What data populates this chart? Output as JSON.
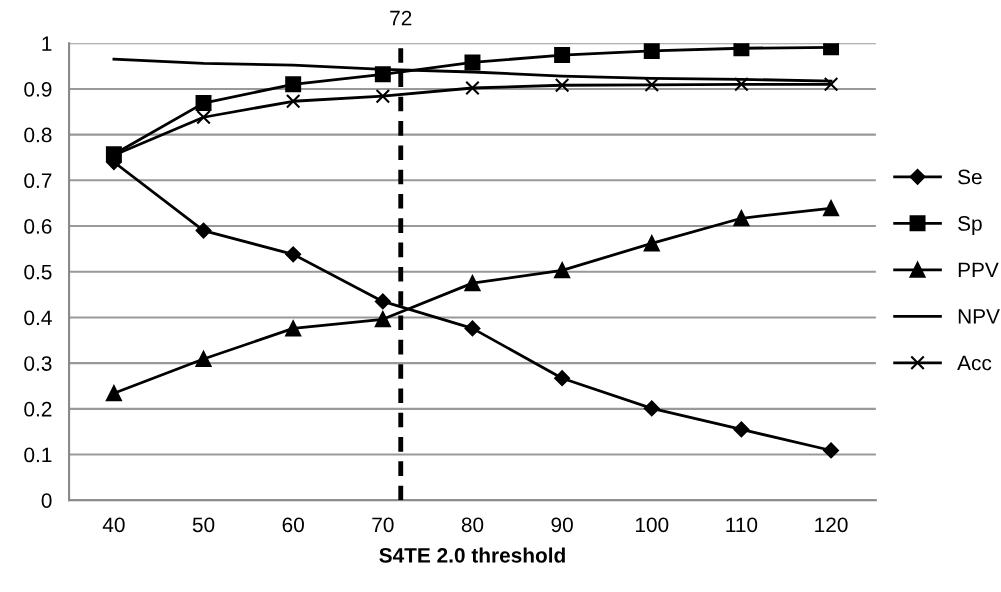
{
  "chart_data": {
    "type": "line",
    "xlabel": "S4TE 2.0 threshold",
    "x": [
      40,
      50,
      60,
      70,
      80,
      90,
      100,
      110,
      120
    ],
    "xlim": [
      35,
      125
    ],
    "xticks": [
      40,
      50,
      60,
      70,
      80,
      90,
      100,
      110,
      120
    ],
    "ylim": [
      0,
      1
    ],
    "yticks": [
      0,
      0.1,
      0.2,
      0.3,
      0.4,
      0.5,
      0.6,
      0.7,
      0.8,
      0.9,
      1
    ],
    "grid": "y",
    "legend": "right",
    "series": [
      {
        "name": "Se",
        "color": "#000000",
        "marker": "diamond",
        "values": [
          0.74,
          0.59,
          0.538,
          0.435,
          0.376,
          0.267,
          0.201,
          0.155,
          0.109
        ]
      },
      {
        "name": "Sp",
        "color": "#000000",
        "marker": "square",
        "values": [
          0.757,
          0.869,
          0.91,
          0.932,
          0.958,
          0.974,
          0.983,
          0.989,
          0.991
        ]
      },
      {
        "name": "PPV",
        "color": "#000000",
        "marker": "triangle",
        "values": [
          0.234,
          0.309,
          0.376,
          0.396,
          0.475,
          0.503,
          0.562,
          0.617,
          0.639
        ]
      },
      {
        "name": "NPV",
        "color": "#000000",
        "marker": "none",
        "values": [
          0.965,
          0.956,
          0.952,
          0.943,
          0.937,
          0.928,
          0.923,
          0.921,
          0.917
        ]
      },
      {
        "name": "Acc",
        "color": "#000000",
        "marker": "cross",
        "values": [
          0.755,
          0.838,
          0.873,
          0.884,
          0.902,
          0.908,
          0.909,
          0.91,
          0.91
        ]
      }
    ],
    "ref_lines": [
      {
        "axis": "x",
        "value": 72,
        "label": "72",
        "color": "#000000",
        "line_style": "dashed"
      }
    ]
  }
}
